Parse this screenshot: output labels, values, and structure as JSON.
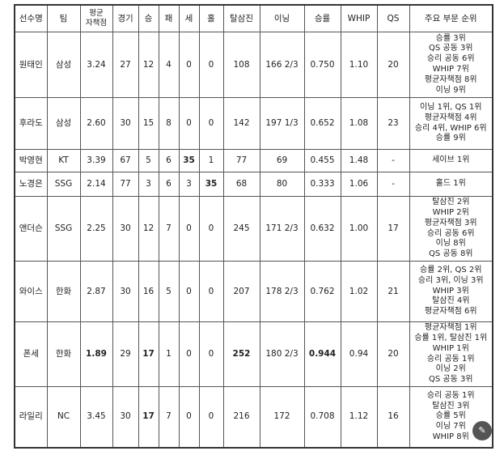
{
  "headers": [
    "선수명",
    "팀",
    "평균\n자책점",
    "경기",
    "승",
    "패",
    "세",
    "홀",
    "탈삼진",
    "이닝",
    "승률",
    "WHIP",
    "QS",
    "주요 부문 순위"
  ],
  "rows": [
    {
      "cells": [
        "원태인",
        "삼성",
        "3.24",
        "27",
        "12",
        "4",
        "0",
        "0",
        "108",
        "166 2/3",
        "0.750",
        "1.10",
        "20"
      ],
      "bold": [],
      "ranks": [
        "승률 3위",
        "QS 공동 3위",
        "승리 공동 6위",
        "WHIP 7위",
        "평균자책점 8위",
        "이닝 9위"
      ],
      "h": 81
    },
    {
      "cells": [
        "후라도",
        "삼성",
        "2.60",
        "30",
        "15",
        "8",
        "0",
        "0",
        "142",
        "197 1/3",
        "0.652",
        "1.08",
        "23"
      ],
      "bold": [],
      "ranks": [
        "이닝 1위, QS 1위",
        "평균자책점 4위",
        "승리 4위, WHIP 6위",
        "승률 9위"
      ],
      "h": 64
    },
    {
      "cells": [
        "박영현",
        "KT",
        "3.39",
        "67",
        "5",
        "6",
        "35",
        "1",
        "77",
        "69",
        "0.455",
        "1.48",
        "-"
      ],
      "bold": [
        6
      ],
      "ranks": [
        "세이브 1위"
      ],
      "h": 28
    },
    {
      "cells": [
        "노경은",
        "SSG",
        "2.14",
        "77",
        "3",
        "6",
        "3",
        "35",
        "68",
        "80",
        "0.333",
        "1.06",
        "-"
      ],
      "bold": [
        7
      ],
      "ranks": [
        "홀드 1위"
      ],
      "h": 30
    },
    {
      "cells": [
        "앤더슨",
        "SSG",
        "2.25",
        "30",
        "12",
        "7",
        "0",
        "0",
        "245",
        "171 2/3",
        "0.632",
        "1.00",
        "17"
      ],
      "bold": [],
      "ranks": [
        "탈삼진 2위",
        "WHIP 2위",
        "평균자책점 3위",
        "승리 공동 6위",
        "이닝 8위",
        "QS 공동 8위"
      ],
      "h": 80
    },
    {
      "cells": [
        "와이스",
        "한화",
        "2.87",
        "30",
        "16",
        "5",
        "0",
        "0",
        "207",
        "178 2/3",
        "0.762",
        "1.02",
        "21"
      ],
      "bold": [],
      "ranks": [
        "승률 2위, QS 2위",
        "승리 3위, 이닝 3위",
        "WHIP 3위",
        "탈삼진 4위",
        "평균자책점 6위"
      ],
      "h": 75
    },
    {
      "cells": [
        "폰세",
        "한화",
        "1.89",
        "29",
        "17",
        "1",
        "0",
        "0",
        "252",
        "180 2/3",
        "0.944",
        "0.94",
        "20"
      ],
      "bold": [
        2,
        4,
        8,
        10
      ],
      "ranks": [
        "평균자책점 1위",
        "승률 1위, 탈삼진 1위",
        "WHIP 1위",
        "승리 공동 1위",
        "이닝 2위",
        "QS 공동 3위"
      ],
      "h": 80
    },
    {
      "cells": [
        "라일리",
        "NC",
        "3.45",
        "30",
        "17",
        "7",
        "0",
        "0",
        "216",
        "172",
        "0.708",
        "1.12",
        "16"
      ],
      "bold": [
        4
      ],
      "ranks": [
        "승리 공동 1위",
        "탈삼진 3위",
        "승률 5위",
        "이닝 7위",
        "WHIP 8위"
      ],
      "h": 75
    }
  ],
  "fab_icon": "magic-wand-icon"
}
